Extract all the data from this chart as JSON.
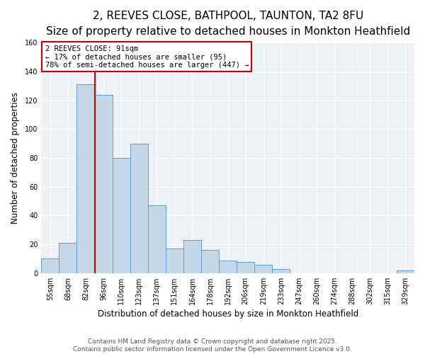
{
  "title": "2, REEVES CLOSE, BATHPOOL, TAUNTON, TA2 8FU",
  "subtitle": "Size of property relative to detached houses in Monkton Heathfield",
  "xlabel": "Distribution of detached houses by size in Monkton Heathfield",
  "ylabel": "Number of detached properties",
  "bin_labels": [
    "55sqm",
    "68sqm",
    "82sqm",
    "96sqm",
    "110sqm",
    "123sqm",
    "137sqm",
    "151sqm",
    "164sqm",
    "178sqm",
    "192sqm",
    "206sqm",
    "219sqm",
    "233sqm",
    "247sqm",
    "260sqm",
    "274sqm",
    "288sqm",
    "302sqm",
    "315sqm",
    "329sqm"
  ],
  "bin_values": [
    10,
    21,
    131,
    124,
    80,
    90,
    47,
    17,
    23,
    16,
    9,
    8,
    6,
    3,
    0,
    0,
    0,
    0,
    0,
    0,
    2
  ],
  "bar_color": "#c5d8e8",
  "bar_edge_color": "#5b9bd5",
  "property_line_label": "2 REEVES CLOSE: 91sqm",
  "annotation_line1": "← 17% of detached houses are smaller (95)",
  "annotation_line2": "78% of semi-detached houses are larger (447) →",
  "vline_color": "#cc0000",
  "box_edge_color": "#cc0000",
  "ylim": [
    0,
    160
  ],
  "yticks": [
    0,
    20,
    40,
    60,
    80,
    100,
    120,
    140,
    160
  ],
  "footer1": "Contains HM Land Registry data © Crown copyright and database right 2025.",
  "footer2": "Contains public sector information licensed under the Open Government Licence v3.0.",
  "background_color": "#ffffff",
  "plot_bg_color": "#eef2f7",
  "title_fontsize": 11,
  "subtitle_fontsize": 9,
  "xlabel_fontsize": 8.5,
  "ylabel_fontsize": 8.5,
  "tick_fontsize": 7,
  "footer_fontsize": 6.5,
  "annotation_fontsize": 7.5,
  "vline_x_index": 2.5
}
